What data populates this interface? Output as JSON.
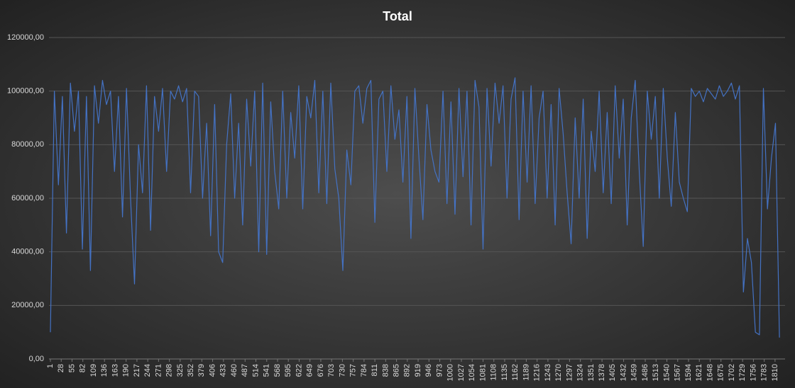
{
  "chart_data": {
    "type": "line",
    "title": "Total",
    "x": [
      1,
      11,
      21,
      31,
      41,
      51,
      61,
      71,
      81,
      91,
      101,
      111,
      121,
      131,
      141,
      151,
      161,
      171,
      181,
      191,
      201,
      211,
      221,
      231,
      241,
      251,
      261,
      271,
      281,
      291,
      301,
      311,
      321,
      331,
      341,
      351,
      361,
      371,
      381,
      391,
      401,
      411,
      421,
      431,
      441,
      451,
      461,
      471,
      481,
      491,
      501,
      511,
      521,
      531,
      541,
      551,
      561,
      571,
      581,
      591,
      601,
      611,
      621,
      631,
      641,
      651,
      661,
      671,
      681,
      691,
      701,
      711,
      721,
      731,
      741,
      751,
      761,
      771,
      781,
      791,
      801,
      811,
      821,
      831,
      841,
      851,
      861,
      871,
      881,
      891,
      901,
      911,
      921,
      931,
      941,
      951,
      961,
      971,
      981,
      991,
      1001,
      1011,
      1021,
      1031,
      1041,
      1051,
      1061,
      1071,
      1081,
      1091,
      1101,
      1111,
      1121,
      1131,
      1141,
      1151,
      1161,
      1171,
      1181,
      1191,
      1201,
      1211,
      1221,
      1231,
      1241,
      1251,
      1261,
      1271,
      1281,
      1291,
      1301,
      1311,
      1321,
      1331,
      1341,
      1351,
      1361,
      1371,
      1381,
      1391,
      1401,
      1411,
      1421,
      1431,
      1441,
      1451,
      1461,
      1471,
      1481,
      1491,
      1501,
      1511,
      1521,
      1531,
      1541,
      1551,
      1561,
      1571,
      1581,
      1591,
      1601,
      1611,
      1621,
      1631,
      1641,
      1651,
      1661,
      1671,
      1681,
      1691,
      1701,
      1711,
      1721,
      1731,
      1741,
      1751,
      1761,
      1771,
      1781,
      1791,
      1801,
      1811,
      1821
    ],
    "series": [
      {
        "color": "#4472c4",
        "values": [
          10000,
          100000,
          65000,
          98000,
          47000,
          103000,
          85000,
          100000,
          41000,
          98000,
          33000,
          102000,
          88000,
          104000,
          95000,
          100000,
          70000,
          98000,
          53000,
          101000,
          60000,
          28000,
          80000,
          62000,
          102000,
          48000,
          98000,
          85000,
          101000,
          70000,
          100000,
          97000,
          102000,
          96000,
          101000,
          62000,
          100000,
          98000,
          60000,
          88000,
          46000,
          95000,
          40000,
          36000,
          80000,
          99000,
          60000,
          88000,
          50000,
          97000,
          72000,
          100000,
          40000,
          103000,
          39000,
          96000,
          70000,
          56000,
          100000,
          60000,
          92000,
          75000,
          102000,
          56000,
          98000,
          90000,
          104000,
          62000,
          100000,
          58000,
          103000,
          71000,
          60000,
          33000,
          78000,
          65000,
          100000,
          102000,
          88000,
          101000,
          104000,
          51000,
          97000,
          100000,
          70000,
          102000,
          82000,
          93000,
          66000,
          98000,
          45000,
          101000,
          75000,
          52000,
          95000,
          78000,
          70000,
          66000,
          100000,
          58000,
          96000,
          54000,
          101000,
          68000,
          100000,
          50000,
          104000,
          94000,
          41000,
          101000,
          72000,
          103000,
          88000,
          102000,
          60000,
          97000,
          105000,
          52000,
          100000,
          66000,
          102000,
          58000,
          90000,
          100000,
          60000,
          95000,
          50000,
          101000,
          84000,
          62000,
          43000,
          90000,
          60000,
          97000,
          45000,
          85000,
          70000,
          100000,
          62000,
          92000,
          58000,
          102000,
          75000,
          97000,
          50000,
          90000,
          104000,
          70000,
          42000,
          100000,
          82000,
          98000,
          60000,
          101000,
          75000,
          57000,
          92000,
          66000,
          60000,
          55000,
          101000,
          98000,
          100000,
          96000,
          101000,
          99000,
          97000,
          102000,
          98000,
          100000,
          103000,
          97000,
          102000,
          25000,
          45000,
          36000,
          10000,
          9000,
          101000,
          56000,
          75000,
          88000,
          8000
        ]
      }
    ],
    "xlim": [
      1,
      1835
    ],
    "xticks": [
      1,
      28,
      55,
      82,
      109,
      136,
      163,
      190,
      217,
      244,
      271,
      298,
      325,
      352,
      379,
      406,
      433,
      460,
      487,
      514,
      541,
      568,
      595,
      622,
      649,
      676,
      703,
      730,
      757,
      784,
      811,
      838,
      865,
      892,
      919,
      946,
      973,
      1000,
      1027,
      1054,
      1081,
      1108,
      1135,
      1162,
      1189,
      1216,
      1243,
      1270,
      1297,
      1324,
      1351,
      1378,
      1405,
      1432,
      1459,
      1486,
      1513,
      1540,
      1567,
      1594,
      1621,
      1648,
      1675,
      1702,
      1729,
      1756,
      1783,
      1810
    ],
    "ylim": [
      0,
      120000
    ],
    "yticks": [
      {
        "value": 0,
        "label": "0,00"
      },
      {
        "value": 20000,
        "label": "20000,00"
      },
      {
        "value": 40000,
        "label": "40000,00"
      },
      {
        "value": 60000,
        "label": "60000,00"
      },
      {
        "value": 80000,
        "label": "80000,00"
      },
      {
        "value": 100000,
        "label": "100000,00"
      },
      {
        "value": 120000,
        "label": "120000,00"
      }
    ],
    "grid": true
  }
}
